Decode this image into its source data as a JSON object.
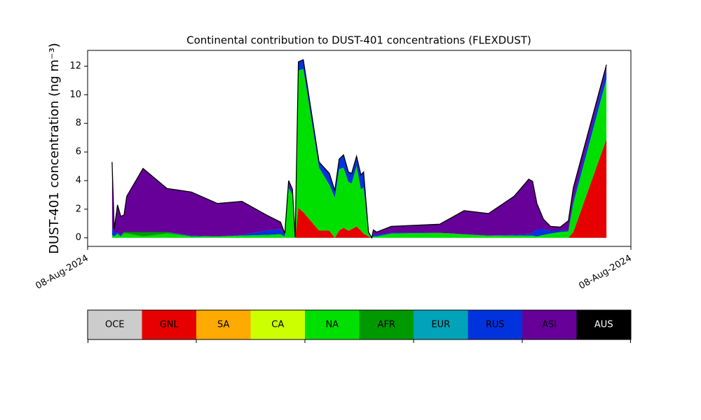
{
  "chart_data": {
    "type": "stacked_area",
    "title": "Continental contribution to DUST-401 concentrations (FLEXDUST)",
    "ylabel": "DUST-401 concentration (ng m⁻³)",
    "xlim": [
      0,
      1
    ],
    "xticks": [
      {
        "value": 0,
        "label": "08-Aug-2024"
      },
      {
        "value": 1,
        "label": "08-Aug-2024"
      }
    ],
    "ylim": [
      -0.6,
      13.1
    ],
    "yticks": [
      0,
      2,
      4,
      6,
      8,
      10,
      12
    ],
    "outline_color": "#000000",
    "x": [
      0.045,
      0.049,
      0.055,
      0.061,
      0.067,
      0.072,
      0.102,
      0.146,
      0.191,
      0.239,
      0.284,
      0.329,
      0.355,
      0.363,
      0.37,
      0.377,
      0.382,
      0.388,
      0.397,
      0.426,
      0.445,
      0.455,
      0.463,
      0.471,
      0.48,
      0.486,
      0.495,
      0.503,
      0.508,
      0.517,
      0.523,
      0.526,
      0.532,
      0.559,
      0.648,
      0.693,
      0.738,
      0.785,
      0.812,
      0.819,
      0.827,
      0.839,
      0.852,
      0.87,
      0.885,
      0.894,
      0.955
    ],
    "series": [
      {
        "name": "GNL",
        "color": "#e60000",
        "values": [
          0,
          0,
          0,
          0,
          0,
          0,
          0,
          0,
          0,
          0,
          0,
          0,
          0,
          0,
          0,
          0,
          0,
          2.1,
          1.8,
          0.5,
          0.5,
          0,
          0.5,
          0.7,
          0.5,
          0.6,
          0.8,
          0.5,
          0.3,
          0.1,
          0,
          0,
          0,
          0,
          0,
          0,
          0,
          0,
          0,
          0,
          0,
          0,
          0,
          0,
          0,
          0.4,
          6.9
        ]
      },
      {
        "name": "NA",
        "color": "#00e000",
        "values": [
          0.2,
          0.1,
          0.3,
          0.1,
          0.3,
          0.3,
          0.1,
          0.3,
          0.1,
          0.1,
          0.15,
          0.2,
          0.25,
          0.1,
          3.5,
          3.0,
          0.05,
          9.6,
          10.0,
          4.4,
          3.2,
          2.8,
          4.3,
          4.2,
          3.4,
          3.2,
          4.2,
          2.9,
          3.2,
          0.2,
          0,
          0.1,
          0.1,
          0.3,
          0.35,
          0.25,
          0.15,
          0.15,
          0.15,
          0.15,
          0.1,
          0.2,
          0.3,
          0.4,
          0.45,
          2.0,
          4.2
        ]
      },
      {
        "name": "AFR",
        "color": "#009900",
        "values": [
          0,
          0,
          0,
          0,
          0.1,
          0.1,
          0.3,
          0.1,
          0,
          0,
          0,
          0,
          0,
          0,
          0,
          0,
          0,
          0,
          0,
          0,
          0,
          0,
          0,
          0,
          0,
          0,
          0,
          0,
          0,
          0,
          0,
          0,
          0,
          0,
          0,
          0,
          0,
          0,
          0,
          0,
          0,
          0,
          0,
          0,
          0,
          0,
          0
        ]
      },
      {
        "name": "RUS",
        "color": "#0033dd",
        "values": [
          0.5,
          0.3,
          0.1,
          0.1,
          0,
          0,
          0,
          0,
          0.05,
          0,
          0.05,
          0.3,
          0.35,
          0.1,
          0.2,
          0.2,
          0,
          0.6,
          0.65,
          0.4,
          0.8,
          0.5,
          0.7,
          0.9,
          0.7,
          0.7,
          0.7,
          1.0,
          1.1,
          0.1,
          0,
          0.2,
          0.1,
          0.05,
          0,
          0,
          0,
          0.05,
          0.1,
          0.2,
          0.5,
          0.4,
          0.2,
          0.1,
          0.1,
          0.3,
          0.7
        ]
      },
      {
        "name": "ASI",
        "color": "#660099",
        "values": [
          4.6,
          0.2,
          1.9,
          1.3,
          1.2,
          2.5,
          4.45,
          3.05,
          3.05,
          2.3,
          2.35,
          1.1,
          0.5,
          0.1,
          0.3,
          0.2,
          0,
          0,
          0,
          0,
          0,
          0,
          0,
          0,
          0,
          0,
          0,
          0,
          0,
          0,
          0,
          0.25,
          0.2,
          0.45,
          0.6,
          1.65,
          1.55,
          2.7,
          3.85,
          3.6,
          1.8,
          0.7,
          0.3,
          0.25,
          0.65,
          0.8,
          0.3
        ]
      }
    ],
    "legend": [
      {
        "name": "OCE",
        "color": "#cccccc"
      },
      {
        "name": "GNL",
        "color": "#e60000"
      },
      {
        "name": "SA",
        "color": "#ffaa00"
      },
      {
        "name": "CA",
        "color": "#ccff00"
      },
      {
        "name": "NA",
        "color": "#00e000"
      },
      {
        "name": "AFR",
        "color": "#009900"
      },
      {
        "name": "EUR",
        "color": "#00a3b8"
      },
      {
        "name": "RUS",
        "color": "#0033dd"
      },
      {
        "name": "ASI",
        "color": "#660099"
      },
      {
        "name": "AUS",
        "color": "#000000"
      }
    ]
  }
}
